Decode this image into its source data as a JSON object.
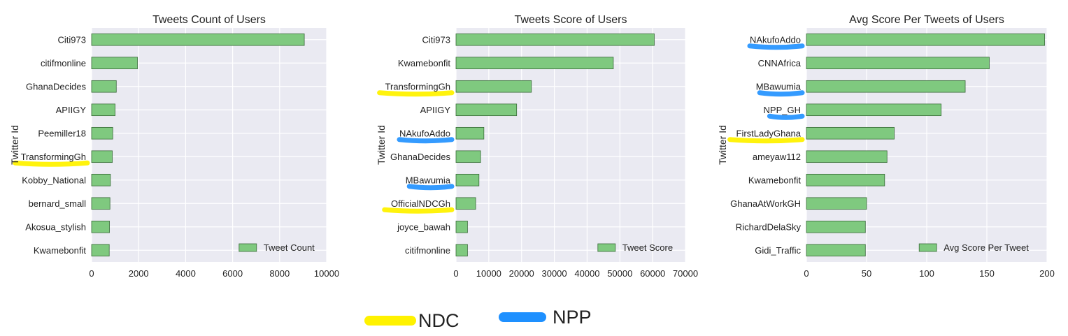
{
  "chart_data": [
    {
      "type": "bar",
      "orientation": "horizontal",
      "title": "Tweets Count of Users",
      "ylabel": "Twitter Id",
      "xlabel": "",
      "categories": [
        "Citi973",
        "citifmonline",
        "GhanaDecides",
        "APIIGY",
        "Peemiller18",
        "TransformingGh",
        "Kobby_National",
        "bernard_small",
        "Akosua_stylish",
        "Kwamebonfit"
      ],
      "series": [
        {
          "name": "Tweet Count",
          "values": [
            9050,
            1950,
            1050,
            1000,
            900,
            880,
            800,
            780,
            760,
            750
          ]
        }
      ],
      "xlim": [
        0,
        10000
      ],
      "xticks": [
        "0",
        "2000",
        "4000",
        "6000",
        "8000",
        "10000"
      ],
      "legend_position": "bottom-right",
      "grid": true,
      "highlights": [
        {
          "category": "TransformingGh",
          "party": "NDC"
        }
      ]
    },
    {
      "type": "bar",
      "orientation": "horizontal",
      "title": "Tweets Score of Users",
      "ylabel": "Twitter Id",
      "xlabel": "",
      "categories": [
        "Citi973",
        "Kwamebonfit",
        "TransformingGh",
        "APIIGY",
        "NAkufoAddo",
        "GhanaDecides",
        "MBawumia",
        "OfficialNDCGh",
        "joyce_bawah",
        "citifmonline"
      ],
      "series": [
        {
          "name": "Tweet Score",
          "values": [
            60500,
            48000,
            23000,
            18500,
            8500,
            7500,
            7000,
            6000,
            3500,
            3500
          ]
        }
      ],
      "xlim": [
        0,
        70000
      ],
      "xticks": [
        "0",
        "10000",
        "20000",
        "30000",
        "40000",
        "50000",
        "60000",
        "70000"
      ],
      "legend_position": "bottom-right",
      "grid": true,
      "highlights": [
        {
          "category": "TransformingGh",
          "party": "NDC"
        },
        {
          "category": "NAkufoAddo",
          "party": "NPP"
        },
        {
          "category": "MBawumia",
          "party": "NPP"
        },
        {
          "category": "OfficialNDCGh",
          "party": "NDC"
        }
      ]
    },
    {
      "type": "bar",
      "orientation": "horizontal",
      "title": "Avg Score Per Tweets of Users",
      "ylabel": "Twitter Id",
      "xlabel": "",
      "categories": [
        "NAkufoAddo",
        "CNNAfrica",
        "MBawumia",
        "NPP_GH",
        "FirstLadyGhana",
        "ameyaw112",
        "Kwamebonfit",
        "GhanaAtWorkGH",
        "RichardDelaSky",
        "Gidi_Traffic"
      ],
      "series": [
        {
          "name": "Avg Score Per Tweet",
          "values": [
            198,
            152,
            132,
            112,
            73,
            67,
            65,
            50,
            49,
            49
          ]
        }
      ],
      "xlim": [
        0,
        200
      ],
      "xticks": [
        "0",
        "50",
        "100",
        "150",
        "200"
      ],
      "legend_position": "bottom-right",
      "grid": true,
      "highlights": [
        {
          "category": "NAkufoAddo",
          "party": "NPP"
        },
        {
          "category": "MBawumia",
          "party": "NPP"
        },
        {
          "category": "NPP_GH",
          "party": "NPP"
        },
        {
          "category": "FirstLadyGhana",
          "party": "NDC"
        }
      ]
    }
  ],
  "party_legend": [
    {
      "label": "NDC",
      "color": "#fff200"
    },
    {
      "label": "NPP",
      "color": "#1e90ff"
    }
  ],
  "colors": {
    "bar_fill": "#7fc97f",
    "bar_stroke": "#3a6b3a",
    "plot_bg": "#eaeaf2",
    "grid": "#ffffff",
    "text": "#222222"
  }
}
